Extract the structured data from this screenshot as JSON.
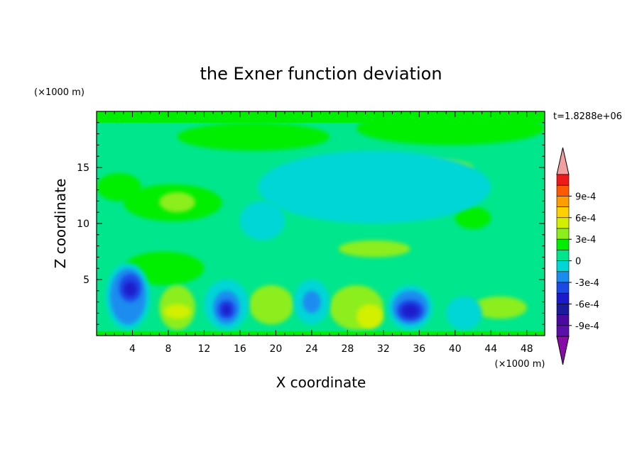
{
  "chart_data": {
    "type": "heatmap",
    "title": "the Exner function deviation",
    "xlabel": "X coordinate",
    "ylabel": "Z coordinate",
    "x_unit": "(×1000 m)",
    "y_unit": "(×1000 m)",
    "time_label": "t=1.8288e+06",
    "xlim": [
      0,
      50
    ],
    "ylim": [
      0,
      20
    ],
    "x_ticks": [
      4,
      8,
      12,
      16,
      20,
      24,
      28,
      32,
      36,
      40,
      44,
      48
    ],
    "y_ticks": [
      5,
      10,
      15
    ],
    "colorbar": {
      "levels": [
        {
          "value": -0.0011,
          "color": "#8a0ca8"
        },
        {
          "value": -0.00105,
          "color": "#5a10a8"
        },
        {
          "value": -0.0009,
          "color": "#4a0aa0",
          "label": "-9e-4"
        },
        {
          "value": -0.00075,
          "color": "#1a1a9c"
        },
        {
          "value": -0.0006,
          "color": "#1a1acc",
          "label": "-6e-4"
        },
        {
          "value": -0.00045,
          "color": "#1a4ae6"
        },
        {
          "value": -0.0003,
          "color": "#1a8cf0",
          "label": "-3e-4"
        },
        {
          "value": -0.00015,
          "color": "#00d6d6"
        },
        {
          "value": 0.0,
          "color": "#00e68c",
          "label": "0"
        },
        {
          "value": 0.00015,
          "color": "#00ee00"
        },
        {
          "value": 0.0003,
          "color": "#8cee1a",
          "label": "3e-4"
        },
        {
          "value": 0.00045,
          "color": "#d2f000"
        },
        {
          "value": 0.0006,
          "color": "#ffd000",
          "label": "6e-4"
        },
        {
          "value": 0.00075,
          "color": "#ff9e00"
        },
        {
          "value": 0.0009,
          "color": "#ff5a00",
          "label": "9e-4"
        },
        {
          "value": 0.00105,
          "color": "#ee1a1a"
        },
        {
          "value": 0.0012,
          "color": "#f0a0a0"
        }
      ]
    },
    "regions": [
      {
        "x": [
          0,
          50
        ],
        "z": [
          0,
          20
        ],
        "level": 0.00015
      },
      {
        "x": [
          0,
          50
        ],
        "z": [
          0.4,
          19
        ],
        "level": 0.0
      },
      {
        "x": [
          9,
          26
        ],
        "z": [
          16.5,
          19
        ],
        "level": 0.00015
      },
      {
        "x": [
          29,
          50
        ],
        "z": [
          17,
          20
        ],
        "level": 0.00015
      },
      {
        "x": [
          0,
          5
        ],
        "z": [
          12,
          14.5
        ],
        "level": 0.00015
      },
      {
        "x": [
          3,
          14
        ],
        "z": [
          10.2,
          13.5
        ],
        "level": 0.00015
      },
      {
        "x": [
          7,
          11
        ],
        "z": [
          11,
          12.8
        ],
        "level": 0.0003
      },
      {
        "x": [
          31,
          42
        ],
        "z": [
          14.2,
          15.8
        ],
        "level": 0.0003
      },
      {
        "x": [
          40,
          44
        ],
        "z": [
          9.5,
          11.5
        ],
        "level": 0.00015
      },
      {
        "x": [
          18,
          44
        ],
        "z": [
          10,
          16.5
        ],
        "level": -0.00015
      },
      {
        "x": [
          27,
          35
        ],
        "z": [
          7,
          8.5
        ],
        "level": 0.0003
      },
      {
        "x": [
          16,
          21
        ],
        "z": [
          8.5,
          12
        ],
        "level": -0.00015
      },
      {
        "x": [
          3,
          12
        ],
        "z": [
          4.5,
          7.5
        ],
        "level": 0.00015
      },
      {
        "x": [
          7,
          11
        ],
        "z": [
          0.5,
          4.5
        ],
        "level": 0.0003
      },
      {
        "x": [
          7.5,
          10.5
        ],
        "z": [
          1.5,
          2.8
        ],
        "level": 0.00045
      },
      {
        "x": [
          17,
          22
        ],
        "z": [
          1.0,
          4.5
        ],
        "level": 0.0003
      },
      {
        "x": [
          26,
          32
        ],
        "z": [
          0.5,
          4.5
        ],
        "level": 0.0003
      },
      {
        "x": [
          29,
          32
        ],
        "z": [
          0.6,
          2.8
        ],
        "level": 0.00045
      },
      {
        "x": [
          42,
          48
        ],
        "z": [
          1.5,
          3.5
        ],
        "level": 0.0003
      },
      {
        "x": [
          1,
          6
        ],
        "z": [
          0.5,
          6.5
        ],
        "level": -0.00015
      },
      {
        "x": [
          1.5,
          5.5
        ],
        "z": [
          1.0,
          6.0
        ],
        "level": -0.0003
      },
      {
        "x": [
          2.5,
          5.0
        ],
        "z": [
          3.0,
          5.5
        ],
        "level": -0.00045
      },
      {
        "x": [
          3.0,
          4.5
        ],
        "z": [
          3.5,
          4.8
        ],
        "level": -0.0006
      },
      {
        "x": [
          12,
          17
        ],
        "z": [
          0.5,
          5
        ],
        "level": -0.00015
      },
      {
        "x": [
          13,
          16
        ],
        "z": [
          1.0,
          4.0
        ],
        "level": -0.0003
      },
      {
        "x": [
          13.5,
          15.5
        ],
        "z": [
          1.5,
          3.2
        ],
        "level": -0.00045
      },
      {
        "x": [
          14,
          15
        ],
        "z": [
          1.8,
          2.8
        ],
        "level": -0.0006
      },
      {
        "x": [
          22,
          26
        ],
        "z": [
          1.0,
          5.0
        ],
        "level": -0.00015
      },
      {
        "x": [
          23,
          25
        ],
        "z": [
          2.0,
          4.0
        ],
        "level": -0.0003
      },
      {
        "x": [
          32.5,
          37.5
        ],
        "z": [
          0.5,
          4.5
        ],
        "level": -0.00015
      },
      {
        "x": [
          33,
          37
        ],
        "z": [
          1.0,
          4.0
        ],
        "level": -0.0003
      },
      {
        "x": [
          33.5,
          36.5
        ],
        "z": [
          1.3,
          3.2
        ],
        "level": -0.00045
      },
      {
        "x": [
          34,
          36
        ],
        "z": [
          1.6,
          2.8
        ],
        "level": -0.0006
      },
      {
        "x": [
          39,
          43
        ],
        "z": [
          0.5,
          3.5
        ],
        "level": -0.00015
      }
    ]
  }
}
